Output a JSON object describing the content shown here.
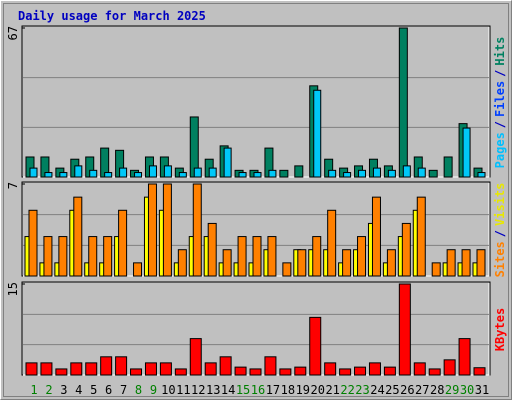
{
  "title": "Daily usage for March 2025",
  "chart_data": [
    {
      "type": "bar",
      "ylim": [
        0,
        67
      ],
      "yticks": [
        67
      ],
      "legend": [
        "Pages",
        "/",
        "Files",
        "/",
        "Hits"
      ],
      "legend_colors": [
        "#00c0ff",
        "#0000c0",
        "#0040ff",
        "#0000c0",
        "#008060"
      ],
      "series": [
        {
          "name": "Hits",
          "color": "#008060",
          "values": [
            9,
            9,
            4,
            8,
            9,
            13,
            12,
            3,
            9,
            9,
            4,
            27,
            8,
            14,
            3,
            3,
            13,
            3,
            5,
            41,
            8,
            4,
            5,
            8,
            5,
            67,
            9,
            3,
            9,
            24,
            4
          ]
        },
        {
          "name": "Pages",
          "color": "#00c8f8",
          "values": [
            4,
            2,
            2,
            5,
            3,
            2,
            4,
            2,
            5,
            5,
            2,
            4,
            4,
            13,
            2,
            2,
            3,
            0,
            0,
            39,
            3,
            2,
            3,
            4,
            3,
            5,
            4,
            0,
            0,
            22,
            2
          ]
        }
      ]
    },
    {
      "type": "bar",
      "ylim": [
        0,
        7
      ],
      "yticks": [
        7
      ],
      "legend": [
        "Sites",
        "/",
        "Visits"
      ],
      "legend_colors": [
        "#ff8000",
        "#0000c0",
        "#e8e800"
      ],
      "series": [
        {
          "name": "Visits",
          "color": "#ffff00",
          "values": [
            3,
            1,
            1,
            5,
            1,
            1,
            3,
            0,
            6,
            5,
            1,
            3,
            3,
            1,
            1,
            1,
            2,
            0,
            2,
            2,
            2,
            1,
            2,
            4,
            1,
            3,
            5,
            0,
            1,
            1,
            1
          ]
        },
        {
          "name": "Sites",
          "color": "#ff8000",
          "values": [
            5,
            3,
            3,
            6,
            3,
            3,
            5,
            1,
            7,
            7,
            2,
            7,
            4,
            2,
            3,
            3,
            3,
            1,
            2,
            3,
            5,
            2,
            3,
            6,
            2,
            4,
            6,
            1,
            2,
            2,
            2
          ]
        }
      ]
    },
    {
      "type": "bar",
      "ylim": [
        0,
        15
      ],
      "yticks": [
        15
      ],
      "legend": [
        "KBytes"
      ],
      "legend_colors": [
        "#ff0000"
      ],
      "categories": [
        "1",
        "2",
        "3",
        "4",
        "5",
        "6",
        "7",
        "8",
        "9",
        "10",
        "11",
        "12",
        "13",
        "14",
        "15",
        "16",
        "17",
        "18",
        "19",
        "20",
        "21",
        "22",
        "23",
        "24",
        "25",
        "26",
        "27",
        "28",
        "29",
        "30",
        "31"
      ],
      "category_colors": [
        "#008000",
        "#008000",
        "#000000",
        "#000000",
        "#000000",
        "#000000",
        "#000000",
        "#008000",
        "#008000",
        "#000000",
        "#000000",
        "#000000",
        "#000000",
        "#000000",
        "#008000",
        "#008000",
        "#000000",
        "#000000",
        "#000000",
        "#000000",
        "#000000",
        "#008000",
        "#008000",
        "#000000",
        "#000000",
        "#000000",
        "#000000",
        "#000000",
        "#008000",
        "#008000",
        "#000000"
      ],
      "series": [
        {
          "name": "KBytes",
          "color": "#ff0000",
          "values": [
            2,
            2,
            1,
            2,
            2,
            3,
            3,
            1,
            2,
            2,
            1,
            6,
            2,
            3,
            1.3,
            1,
            3,
            1,
            1.3,
            9.5,
            2,
            1,
            1.3,
            2,
            1.3,
            15,
            2,
            1,
            2.5,
            6,
            1.2
          ]
        }
      ]
    }
  ]
}
